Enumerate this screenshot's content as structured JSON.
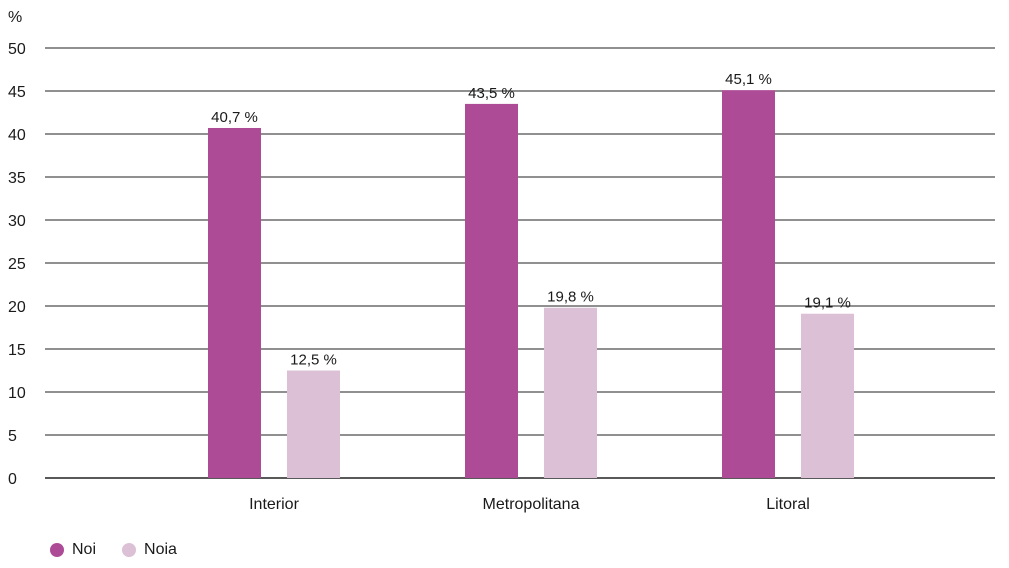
{
  "chart_data": {
    "type": "bar",
    "ylabel": "%",
    "ylim": [
      0,
      50
    ],
    "yticks": [
      "0",
      "5",
      "10",
      "15",
      "20",
      "25",
      "30",
      "35",
      "40",
      "45",
      "50"
    ],
    "grid": true,
    "legend_position": "bottom-left",
    "categories": [
      "Interior",
      "Metropolitana",
      "Litoral"
    ],
    "series": [
      {
        "name": "Noi",
        "color": "#ad4b96",
        "values": [
          40.7,
          43.5,
          45.1
        ],
        "labels": [
          "40,7 %",
          "43,5 %",
          "45,1 %"
        ]
      },
      {
        "name": "Noia",
        "color": "#dbc0d6",
        "values": [
          12.5,
          19.8,
          19.1
        ],
        "labels": [
          "12,5 %",
          "19,8 %",
          "19,1 %"
        ]
      }
    ]
  }
}
